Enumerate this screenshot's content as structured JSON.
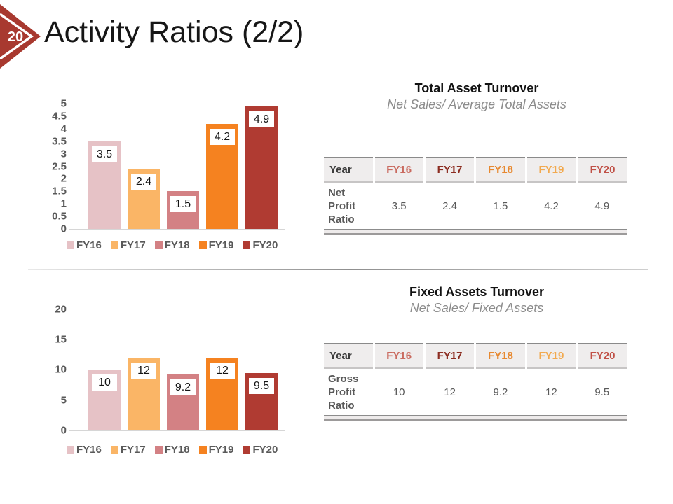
{
  "slide": {
    "page_number": "20",
    "title": "Activity Ratios (2/2)",
    "accent_color": "#a8392f",
    "background_color": "#ffffff"
  },
  "chart_data": [
    {
      "type": "bar",
      "title": "Total Asset Turnover",
      "subtitle": "Net Sales/ Average Total Assets",
      "categories": [
        "FY16",
        "FY17",
        "FY18",
        "FY19",
        "FY20"
      ],
      "values": [
        3.5,
        2.4,
        1.5,
        4.2,
        4.9
      ],
      "data_labels": [
        "3.5",
        "2.4",
        "1.5",
        "4.2",
        "4.9"
      ],
      "bar_colors": [
        "#e6c2c6",
        "#fab566",
        "#d38184",
        "#f58220",
        "#b03b32"
      ],
      "xlabel": "",
      "ylabel": "",
      "ylim": [
        0,
        5
      ],
      "yticks": [
        5,
        4.5,
        4,
        3.5,
        3,
        2.5,
        2,
        1.5,
        1,
        0.5,
        0
      ],
      "grid": false,
      "legend_position": "bottom"
    },
    {
      "type": "bar",
      "title": "Fixed Assets Turnover",
      "subtitle": "Net Sales/ Fixed Assets",
      "categories": [
        "FY16",
        "FY17",
        "FY18",
        "FY19",
        "FY20"
      ],
      "values": [
        10,
        12,
        9.2,
        12,
        9.5
      ],
      "data_labels": [
        "10",
        "12",
        "9.2",
        "12",
        "9.5"
      ],
      "bar_colors": [
        "#e6c2c6",
        "#fab566",
        "#d38184",
        "#f58220",
        "#b03b32"
      ],
      "xlabel": "",
      "ylabel": "",
      "ylim": [
        0,
        20
      ],
      "yticks": [
        20,
        15,
        10,
        5,
        0
      ],
      "grid": false,
      "legend_position": "bottom"
    }
  ],
  "tables": [
    {
      "headers": [
        "Year",
        "FY16",
        "FY17",
        "FY18",
        "FY19",
        "FY20"
      ],
      "header_colors": [
        "#3d3d3d",
        "#c96a5f",
        "#8c2d21",
        "#e7882f",
        "#f2a94e",
        "#c05046"
      ],
      "row_label": "Net Profit Ratio",
      "values": [
        "3.5",
        "2.4",
        "1.5",
        "4.2",
        "4.9"
      ]
    },
    {
      "headers": [
        "Year",
        "FY16",
        "FY17",
        "FY18",
        "FY19",
        "FY20"
      ],
      "header_colors": [
        "#3d3d3d",
        "#c96a5f",
        "#8c2d21",
        "#e7882f",
        "#f2a94e",
        "#c05046"
      ],
      "row_label": "Gross Profit Ratio",
      "values": [
        "10",
        "12",
        "9.2",
        "12",
        "9.5"
      ]
    }
  ]
}
